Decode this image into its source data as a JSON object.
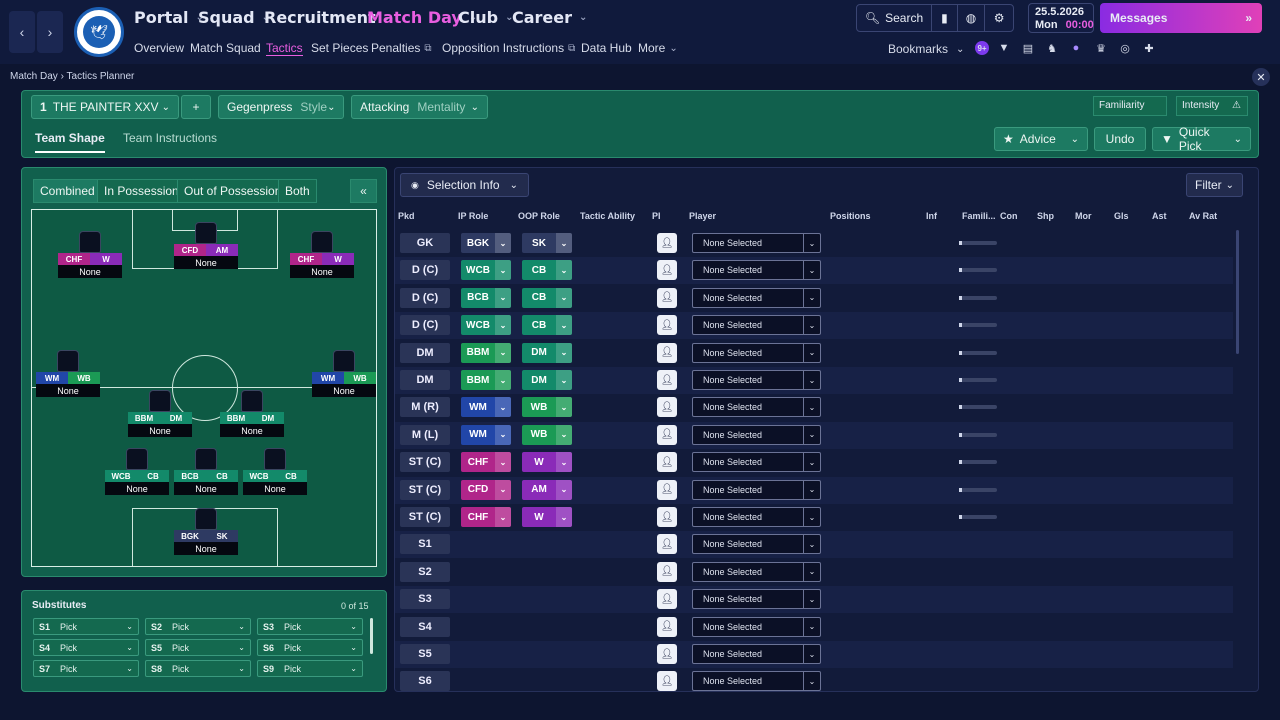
{
  "nav": {
    "main": [
      {
        "label": "Portal"
      },
      {
        "label": "Squad"
      },
      {
        "label": "Recruitment"
      },
      {
        "label": "Match Day"
      },
      {
        "label": "Club"
      },
      {
        "label": "Career"
      }
    ],
    "sub": [
      {
        "label": "Overview"
      },
      {
        "label": "Match Squad"
      },
      {
        "label": "Tactics"
      },
      {
        "label": "Set Pieces"
      },
      {
        "label": "Penalties"
      },
      {
        "label": "Opposition Instructions"
      },
      {
        "label": "Data Hub"
      },
      {
        "label": "More"
      }
    ],
    "search_label": "Search",
    "date": "25.5.2026",
    "day": "Mon",
    "time": "00:00",
    "messages_label": "Messages",
    "bookmarks_label": "Bookmarks",
    "badge_count": "9+"
  },
  "breadcrumb": {
    "parent": "Match Day",
    "current": "Tactics Planner"
  },
  "tactic": {
    "slot": "1",
    "name": "THE PAINTER XXV",
    "add_label": "+",
    "style_value": "Gegenpress",
    "style_label": "Style",
    "mentality_value": "Attacking",
    "mentality_label": "Mentality",
    "familiarity_label": "Familiarity",
    "intensity_label": "Intensity",
    "tabs": [
      "Team Shape",
      "Team Instructions"
    ],
    "advice_label": "Advice",
    "undo_label": "Undo",
    "quickpick_label": "Quick Pick"
  },
  "pitch_tabs": [
    "Combined",
    "In Possession",
    "Out of Possession",
    "Both"
  ],
  "collapse_label": "«",
  "pitch_players": [
    {
      "ip": "CHF",
      "oop": "W",
      "name": "None",
      "ipc": "#b0258a",
      "oopc": "#8a2bb8"
    },
    {
      "ip": "CFD",
      "oop": "AM",
      "name": "None",
      "ipc": "#b0258a",
      "oopc": "#8a2bb8"
    },
    {
      "ip": "CHF",
      "oop": "W",
      "name": "None",
      "ipc": "#b0258a",
      "oopc": "#8a2bb8"
    },
    {
      "ip": "WM",
      "oop": "WB",
      "name": "None",
      "ipc": "#2146a8",
      "oopc": "#1b9a55"
    },
    {
      "ip": "WM",
      "oop": "WB",
      "name": "None",
      "ipc": "#2146a8",
      "oopc": "#1b9a55"
    },
    {
      "ip": "BBM",
      "oop": "DM",
      "name": "None",
      "ipc": "#138a6a",
      "oopc": "#138a6a"
    },
    {
      "ip": "BBM",
      "oop": "DM",
      "name": "None",
      "ipc": "#138a6a",
      "oopc": "#138a6a"
    },
    {
      "ip": "WCB",
      "oop": "CB",
      "name": "None",
      "ipc": "#138a6a",
      "oopc": "#138a6a"
    },
    {
      "ip": "BCB",
      "oop": "CB",
      "name": "None",
      "ipc": "#138a6a",
      "oopc": "#138a6a"
    },
    {
      "ip": "WCB",
      "oop": "CB",
      "name": "None",
      "ipc": "#138a6a",
      "oopc": "#138a6a"
    },
    {
      "ip": "BGK",
      "oop": "SK",
      "name": "None",
      "ipc": "#2e3a62",
      "oopc": "#2e3a62"
    }
  ],
  "substitutes": {
    "title": "Substitutes",
    "count": "0 of 15",
    "slots": [
      {
        "slot": "S1",
        "value": "Pick"
      },
      {
        "slot": "S2",
        "value": "Pick"
      },
      {
        "slot": "S3",
        "value": "Pick"
      },
      {
        "slot": "S4",
        "value": "Pick"
      },
      {
        "slot": "S5",
        "value": "Pick"
      },
      {
        "slot": "S6",
        "value": "Pick"
      },
      {
        "slot": "S7",
        "value": "Pick"
      },
      {
        "slot": "S8",
        "value": "Pick"
      },
      {
        "slot": "S9",
        "value": "Pick"
      }
    ]
  },
  "table": {
    "selection_info_label": "Selection Info",
    "filter_label": "Filter",
    "headers": [
      "Pkd",
      "IP Role",
      "OOP Role",
      "Tactic Ability",
      "PI",
      "Player",
      "Positions",
      "Inf",
      "Famili...",
      "Con",
      "Shp",
      "Mor",
      "Gls",
      "Ast",
      "Av Rat"
    ],
    "rows": [
      {
        "pos": "GK",
        "ip": "BGK",
        "oop": "SK",
        "player": "None Selected",
        "cls_ip": "c-gk",
        "cls_oop": "c-gk"
      },
      {
        "pos": "D (C)",
        "ip": "WCB",
        "oop": "CB",
        "player": "None Selected",
        "cls_ip": "c-def",
        "cls_oop": "c-def"
      },
      {
        "pos": "D (C)",
        "ip": "BCB",
        "oop": "CB",
        "player": "None Selected",
        "cls_ip": "c-def",
        "cls_oop": "c-def"
      },
      {
        "pos": "D (C)",
        "ip": "WCB",
        "oop": "CB",
        "player": "None Selected",
        "cls_ip": "c-def",
        "cls_oop": "c-def"
      },
      {
        "pos": "DM",
        "ip": "BBM",
        "oop": "DM",
        "player": "None Selected",
        "cls_ip": "c-wb",
        "cls_oop": "c-def"
      },
      {
        "pos": "DM",
        "ip": "BBM",
        "oop": "DM",
        "player": "None Selected",
        "cls_ip": "c-wb",
        "cls_oop": "c-def"
      },
      {
        "pos": "M (R)",
        "ip": "WM",
        "oop": "WB",
        "player": "None Selected",
        "cls_ip": "c-wm",
        "cls_oop": "c-wb"
      },
      {
        "pos": "M (L)",
        "ip": "WM",
        "oop": "WB",
        "player": "None Selected",
        "cls_ip": "c-wm",
        "cls_oop": "c-wb"
      },
      {
        "pos": "ST (C)",
        "ip": "CHF",
        "oop": "W",
        "player": "None Selected",
        "cls_ip": "c-att",
        "cls_oop": "c-wide"
      },
      {
        "pos": "ST (C)",
        "ip": "CFD",
        "oop": "AM",
        "player": "None Selected",
        "cls_ip": "c-att",
        "cls_oop": "c-wide"
      },
      {
        "pos": "ST (C)",
        "ip": "CHF",
        "oop": "W",
        "player": "None Selected",
        "cls_ip": "c-att",
        "cls_oop": "c-wide"
      },
      {
        "pos": "S1",
        "ip": "",
        "oop": "",
        "player": "None Selected"
      },
      {
        "pos": "S2",
        "ip": "",
        "oop": "",
        "player": "None Selected"
      },
      {
        "pos": "S3",
        "ip": "",
        "oop": "",
        "player": "None Selected"
      },
      {
        "pos": "S4",
        "ip": "",
        "oop": "",
        "player": "None Selected"
      },
      {
        "pos": "S5",
        "ip": "",
        "oop": "",
        "player": "None Selected"
      },
      {
        "pos": "S6",
        "ip": "",
        "oop": "",
        "player": "None Selected"
      }
    ]
  }
}
